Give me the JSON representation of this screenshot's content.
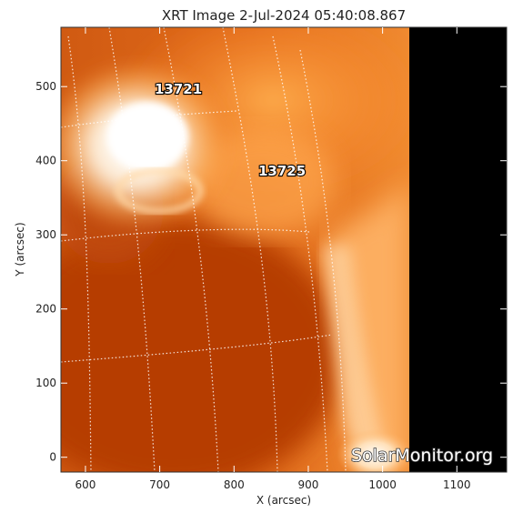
{
  "title": "XRT Image  2-Jul-2024 05:40:08.867",
  "xaxis": {
    "label": "X (arcsec)",
    "range": [
      567,
      1167
    ],
    "ticks": [
      600,
      700,
      800,
      900,
      1000,
      1100
    ]
  },
  "yaxis": {
    "label": "Y (arcsec)",
    "range": [
      -20,
      580
    ],
    "ticks": [
      0,
      100,
      200,
      300,
      400,
      500
    ]
  },
  "active_regions": [
    {
      "number": "13721",
      "x": 695,
      "y": 500
    },
    {
      "number": "13725",
      "x": 835,
      "y": 383
    }
  ],
  "watermark": "SolarMonitor.org",
  "colors": {
    "disk": "#c84a08",
    "corona": "#ff9a3a",
    "bright": "#ffffff",
    "offdisk": "#000000"
  }
}
